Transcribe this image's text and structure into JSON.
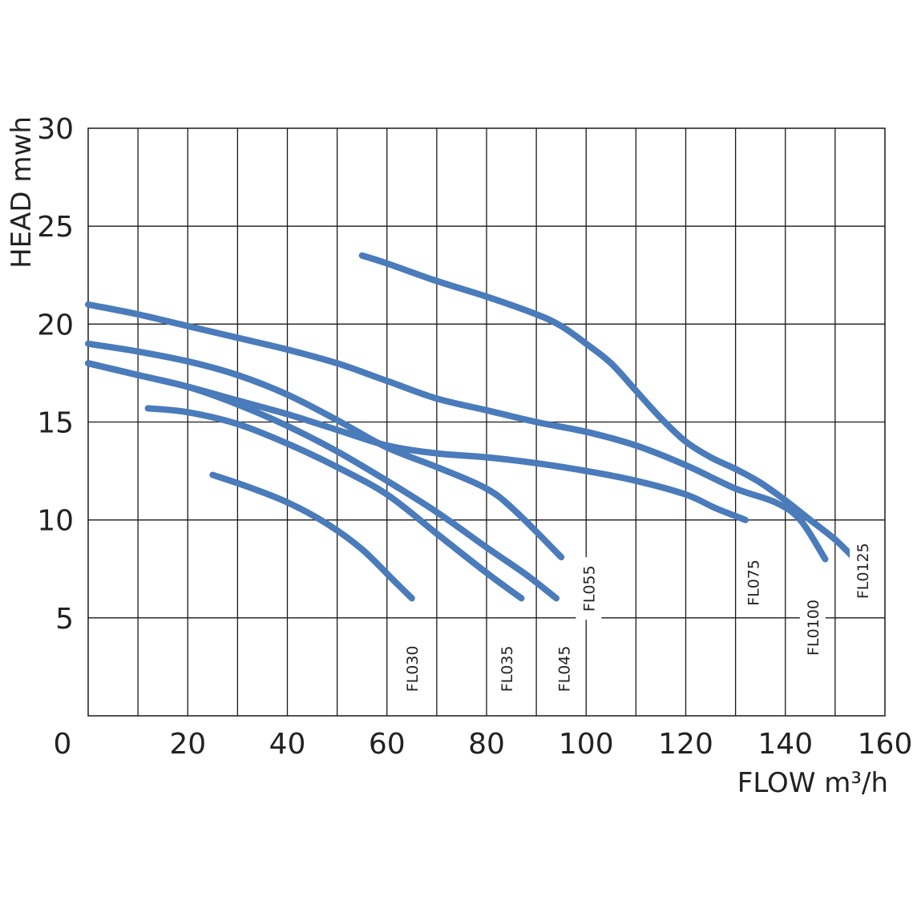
{
  "chart_data": {
    "type": "line",
    "title": "",
    "xlabel": "FLOW  m³/h",
    "ylabel": "HEAD mwh",
    "xlim": [
      0,
      160
    ],
    "ylim": [
      0,
      30
    ],
    "x_ticks": [
      0,
      20,
      40,
      60,
      80,
      100,
      120,
      140,
      160
    ],
    "y_ticks": [
      5,
      10,
      15,
      20,
      25,
      30
    ],
    "y_zero_label": "0",
    "grid": true,
    "grid_x_step": 10,
    "grid_y_step": 5,
    "line_color": "#4a7bbb",
    "series": [
      {
        "name": "FL030",
        "points": [
          [
            25,
            12.3
          ],
          [
            32,
            11.7
          ],
          [
            40,
            10.9
          ],
          [
            48,
            9.8
          ],
          [
            55,
            8.5
          ],
          [
            61,
            7
          ],
          [
            65,
            6
          ]
        ]
      },
      {
        "name": "FL035",
        "points": [
          [
            12,
            15.7
          ],
          [
            20,
            15.5
          ],
          [
            30,
            14.9
          ],
          [
            40,
            13.9
          ],
          [
            50,
            12.7
          ],
          [
            60,
            11.3
          ],
          [
            70,
            9.3
          ],
          [
            80,
            7.3
          ],
          [
            87,
            6
          ]
        ]
      },
      {
        "name": "FL045",
        "points": [
          [
            0,
            18
          ],
          [
            10,
            17.4
          ],
          [
            20,
            16.8
          ],
          [
            30,
            15.9
          ],
          [
            40,
            14.8
          ],
          [
            50,
            13.5
          ],
          [
            60,
            12
          ],
          [
            70,
            10.4
          ],
          [
            80,
            8.6
          ],
          [
            88,
            7.2
          ],
          [
            94,
            6
          ]
        ]
      },
      {
        "name": "FL055",
        "points": [
          [
            0,
            19
          ],
          [
            10,
            18.6
          ],
          [
            20,
            18.1
          ],
          [
            30,
            17.4
          ],
          [
            40,
            16.4
          ],
          [
            50,
            15.1
          ],
          [
            60,
            13.7
          ],
          [
            70,
            12.7
          ],
          [
            80,
            11.6
          ],
          [
            86,
            10.4
          ],
          [
            95,
            8.1
          ]
        ]
      },
      {
        "name": "FL075",
        "points": [
          [
            0,
            21
          ],
          [
            10,
            20.5
          ],
          [
            20,
            19.9
          ],
          [
            30,
            19.3
          ],
          [
            40,
            18.7
          ],
          [
            50,
            18
          ],
          [
            60,
            17.1
          ],
          [
            70,
            16.2
          ],
          [
            80,
            15.6
          ],
          [
            90,
            15
          ],
          [
            100,
            14.5
          ],
          [
            110,
            13.8
          ],
          [
            120,
            12.8
          ],
          [
            130,
            11.6
          ],
          [
            138,
            10.9
          ],
          [
            143,
            10
          ],
          [
            148,
            8
          ]
        ]
      },
      {
        "name": "FL0100",
        "points": [
          [
            0,
            18
          ],
          [
            10,
            17.4
          ],
          [
            20,
            16.8
          ],
          [
            30,
            16.1
          ],
          [
            40,
            15.4
          ],
          [
            50,
            14.6
          ],
          [
            60,
            13.8
          ],
          [
            70,
            13.4
          ],
          [
            80,
            13.2
          ],
          [
            90,
            12.9
          ],
          [
            100,
            12.5
          ],
          [
            110,
            12
          ],
          [
            120,
            11.3
          ],
          [
            126,
            10.6
          ],
          [
            132,
            10
          ]
        ]
      },
      {
        "name": "FL0125",
        "points": [
          [
            55,
            23.5
          ],
          [
            60,
            23.1
          ],
          [
            70,
            22.2
          ],
          [
            80,
            21.4
          ],
          [
            90,
            20.5
          ],
          [
            95,
            19.9
          ],
          [
            100,
            19
          ],
          [
            105,
            18
          ],
          [
            110,
            16.6
          ],
          [
            115,
            15.2
          ],
          [
            120,
            14
          ],
          [
            125,
            13.2
          ],
          [
            130,
            12.6
          ],
          [
            135,
            11.9
          ],
          [
            140,
            11
          ],
          [
            145,
            10
          ],
          [
            150,
            9
          ],
          [
            154,
            8
          ]
        ]
      }
    ],
    "series_labels": [
      {
        "text": "FL030",
        "x": 65,
        "y": 2.4
      },
      {
        "text": "FL035",
        "x": 84,
        "y": 2.4
      },
      {
        "text": "FL045",
        "x": 95.5,
        "y": 2.4
      },
      {
        "text": "FL055",
        "x": 100.5,
        "y": 6.5
      },
      {
        "text": "FL075",
        "x": 133.5,
        "y": 6.8
      },
      {
        "text": "FL0100",
        "x": 145.5,
        "y": 4.5
      },
      {
        "text": "FL0125",
        "x": 155.5,
        "y": 7.4
      }
    ]
  }
}
